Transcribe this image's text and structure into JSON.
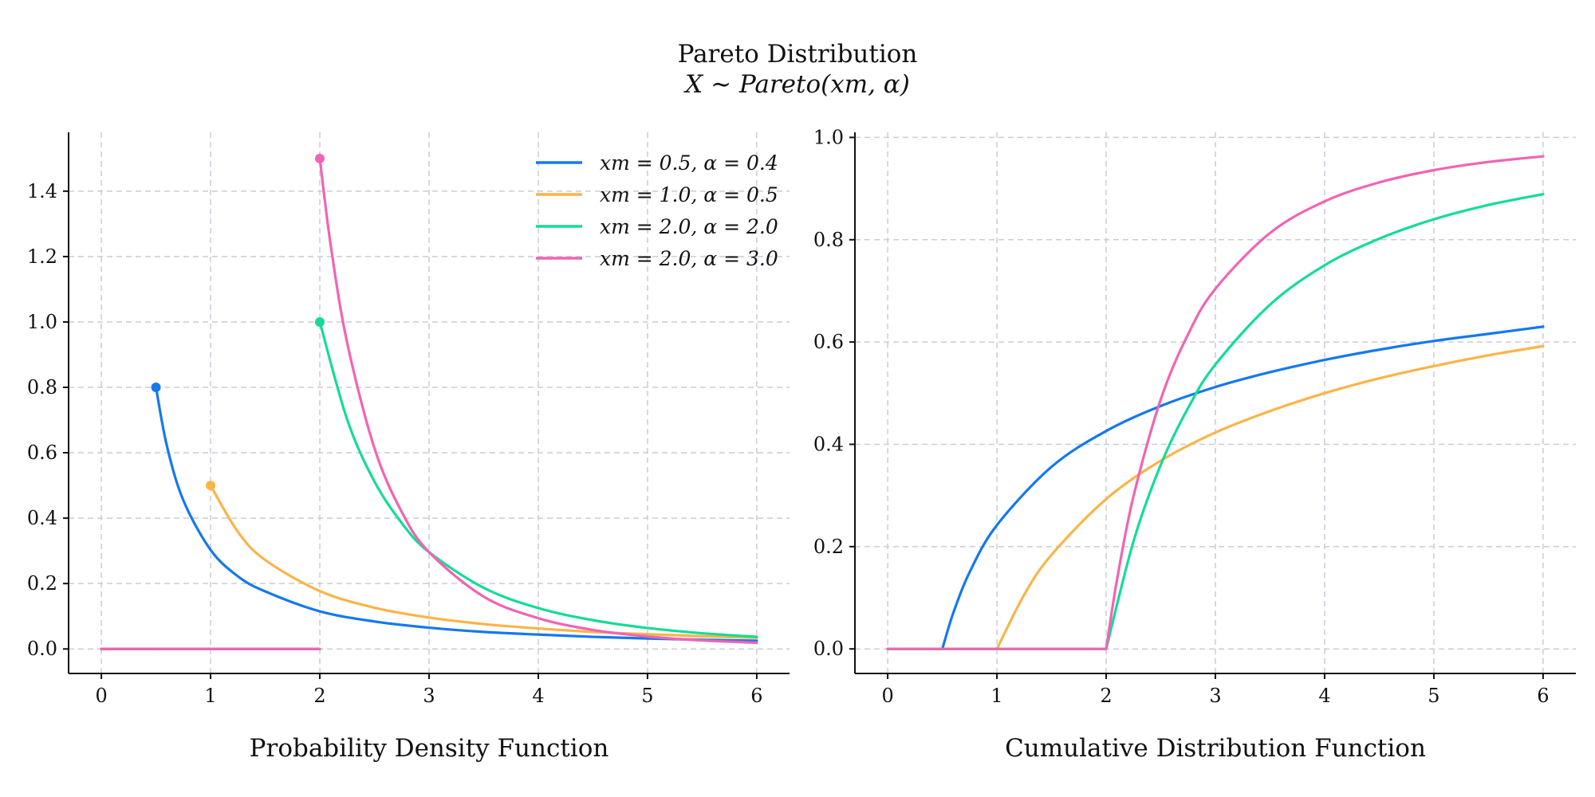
{
  "figure": {
    "title": "Pareto Distribution",
    "subtitle": "X ∼ Pareto(xm, α)"
  },
  "colors": {
    "blue": "#1478f0",
    "orange": "#fbb447",
    "green": "#14dc96",
    "pink": "#f064b4"
  },
  "chart_data": [
    {
      "type": "line",
      "title": "Probability Density Function",
      "xlabel": "",
      "ylabel": "",
      "xlim": [
        -0.3,
        6.3
      ],
      "ylim": [
        -0.075,
        1.58
      ],
      "xticks": [
        0,
        1,
        2,
        3,
        4,
        5,
        6
      ],
      "xtick_labels": [
        "0",
        "1",
        "2",
        "3",
        "4",
        "5",
        "6"
      ],
      "yticks": [
        0,
        0.2,
        0.4,
        0.6,
        0.8,
        1.0,
        1.2,
        1.4
      ],
      "ytick_labels": [
        "0.0",
        "0.2",
        "0.4",
        "0.6",
        "0.8",
        "1.0",
        "1.2",
        "1.4"
      ],
      "grid": true,
      "legend_position": "top-right",
      "series": [
        {
          "name": "xm = 0.5, α = 0.4",
          "color_key": "blue",
          "x": [
            0.5,
            0.6,
            0.75,
            1,
            1.25,
            1.5,
            2,
            2.5,
            3,
            3.5,
            4,
            4.5,
            5,
            5.5,
            6
          ],
          "y": [
            0.8,
            0.621,
            0.455,
            0.303,
            0.222,
            0.176,
            0.115,
            0.084,
            0.065,
            0.052,
            0.044,
            0.037,
            0.032,
            0.028,
            0.025
          ],
          "zero_segment": [
            0,
            0.5
          ],
          "start_marker": [
            0.5,
            0.8
          ]
        },
        {
          "name": "xm = 1.0, α = 0.5",
          "color_key": "orange",
          "x": [
            1,
            1.25,
            1.5,
            2,
            2.5,
            3,
            3.5,
            4,
            4.5,
            5,
            5.5,
            6
          ],
          "y": [
            0.5,
            0.358,
            0.272,
            0.177,
            0.126,
            0.096,
            0.076,
            0.0625,
            0.052,
            0.045,
            0.039,
            0.034
          ],
          "zero_segment": [
            0,
            1
          ],
          "start_marker": [
            1,
            0.5
          ]
        },
        {
          "name": "xm = 2.0, α = 2.0",
          "color_key": "green",
          "x": [
            2,
            2.25,
            2.5,
            2.75,
            3,
            3.5,
            4,
            4.5,
            5,
            5.5,
            6
          ],
          "y": [
            1.0,
            0.702,
            0.512,
            0.385,
            0.296,
            0.187,
            0.125,
            0.088,
            0.064,
            0.048,
            0.037
          ],
          "zero_segment": [
            0,
            2
          ],
          "start_marker": [
            2,
            1.0
          ]
        },
        {
          "name": "xm = 2.0, α = 3.0",
          "color_key": "pink",
          "x": [
            2,
            2.1,
            2.25,
            2.5,
            2.75,
            3,
            3.5,
            4,
            4.5,
            5,
            5.5,
            6
          ],
          "y": [
            1.5,
            1.234,
            0.937,
            0.614,
            0.419,
            0.296,
            0.16,
            0.094,
            0.058,
            0.038,
            0.026,
            0.019
          ],
          "zero_segment": [
            0,
            2
          ],
          "start_marker": [
            2,
            1.5
          ]
        }
      ]
    },
    {
      "type": "line",
      "title": "Cumulative Distribution Function",
      "xlabel": "",
      "ylabel": "",
      "xlim": [
        -0.3,
        6.3
      ],
      "ylim": [
        -0.048,
        1.01
      ],
      "xticks": [
        0,
        1,
        2,
        3,
        4,
        5,
        6
      ],
      "xtick_labels": [
        "0",
        "1",
        "2",
        "3",
        "4",
        "5",
        "6"
      ],
      "yticks": [
        0,
        0.2,
        0.4,
        0.6,
        0.8,
        1.0
      ],
      "ytick_labels": [
        "0.0",
        "0.2",
        "0.4",
        "0.6",
        "0.8",
        "1.0"
      ],
      "grid": true,
      "series": [
        {
          "name": "xm = 0.5, α = 0.4",
          "color_key": "blue",
          "x": [
            0,
            0.5,
            0.6,
            0.75,
            1,
            1.5,
            2,
            2.5,
            3,
            3.5,
            4,
            4.5,
            5,
            5.5,
            6
          ],
          "y": [
            0,
            0,
            0.07,
            0.15,
            0.242,
            0.356,
            0.426,
            0.475,
            0.512,
            0.541,
            0.565,
            0.585,
            0.602,
            0.616,
            0.63
          ]
        },
        {
          "name": "xm = 1.0, α = 0.5",
          "color_key": "orange",
          "x": [
            0,
            1,
            1.25,
            1.5,
            2,
            2.5,
            3,
            3.5,
            4,
            4.5,
            5,
            5.5,
            6
          ],
          "y": [
            0,
            0,
            0.106,
            0.184,
            0.293,
            0.368,
            0.423,
            0.465,
            0.5,
            0.529,
            0.553,
            0.574,
            0.592
          ]
        },
        {
          "name": "xm = 2.0, α = 2.0",
          "color_key": "green",
          "x": [
            0,
            2,
            2.25,
            2.5,
            2.75,
            3,
            3.5,
            4,
            4.5,
            5,
            5.5,
            6
          ],
          "y": [
            0,
            0,
            0.21,
            0.36,
            0.471,
            0.556,
            0.673,
            0.75,
            0.802,
            0.84,
            0.868,
            0.889
          ]
        },
        {
          "name": "xm = 2.0, α = 3.0",
          "color_key": "pink",
          "x": [
            0,
            2,
            2.1,
            2.25,
            2.5,
            2.75,
            3,
            3.5,
            4,
            4.5,
            5,
            5.5,
            6
          ],
          "y": [
            0,
            0,
            0.136,
            0.298,
            0.488,
            0.615,
            0.704,
            0.813,
            0.875,
            0.912,
            0.936,
            0.952,
            0.963
          ]
        }
      ]
    }
  ]
}
